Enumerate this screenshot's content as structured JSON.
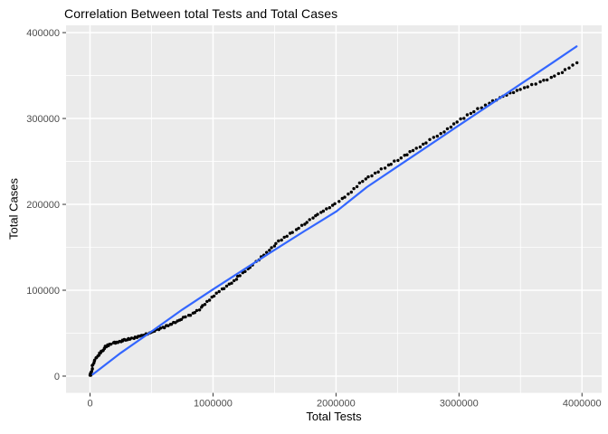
{
  "chart_data": {
    "type": "scatter",
    "title": "Correlation Between total Tests and Total Cases",
    "xlabel": "Total Tests",
    "ylabel": "Total Cases",
    "x_ticks": [
      0,
      1000000,
      2000000,
      3000000,
      4000000
    ],
    "x_tick_labels": [
      "0",
      "1000000",
      "2000000",
      "3000000",
      "4000000"
    ],
    "y_ticks": [
      0,
      100000,
      200000,
      300000,
      400000
    ],
    "y_tick_labels": [
      "0",
      "100000",
      "200000",
      "300000",
      "400000"
    ],
    "xlim": [
      -195000,
      4160000
    ],
    "ylim": [
      -19500,
      408500
    ],
    "grid": {
      "major": true,
      "minor": true,
      "major_color": "#ffffff",
      "minor_color": "#ffffff"
    },
    "panel_bg": "#ebebeb",
    "tick_color": "#333333",
    "tick_label_color": "#4d4d4d",
    "series": [
      {
        "name": "observations",
        "type": "points",
        "color": "#000000",
        "point_radius_px": 1.7,
        "rendered_point_count": 205,
        "x_density_exponent": 1.6,
        "x_max": 3960000,
        "trend_control_points": [
          [
            0,
            1000
          ],
          [
            25000,
            13000
          ],
          [
            50000,
            21000
          ],
          [
            80000,
            27500
          ],
          [
            120000,
            33000
          ],
          [
            170000,
            37500
          ],
          [
            230000,
            40000
          ],
          [
            300000,
            42500
          ],
          [
            370000,
            45000
          ],
          [
            440000,
            48000
          ],
          [
            510000,
            51500
          ],
          [
            580000,
            55500
          ],
          [
            650000,
            60000
          ],
          [
            720000,
            64500
          ],
          [
            790000,
            69500
          ],
          [
            850000,
            74500
          ],
          [
            900000,
            79000
          ],
          [
            950000,
            85000
          ],
          [
            1000000,
            92000
          ],
          [
            1050000,
            98500
          ],
          [
            1130000,
            107000
          ],
          [
            1240000,
            119500
          ],
          [
            1300000,
            126500
          ],
          [
            1355000,
            133500
          ],
          [
            1478000,
            150000
          ],
          [
            1600000,
            163000
          ],
          [
            1700000,
            173500
          ],
          [
            1800000,
            183500
          ],
          [
            1900000,
            192500
          ],
          [
            2000000,
            201000
          ],
          [
            2100000,
            212500
          ],
          [
            2213000,
            226500
          ],
          [
            2300000,
            234000
          ],
          [
            2390000,
            242500
          ],
          [
            2500000,
            252000
          ],
          [
            2640000,
            263500
          ],
          [
            2780000,
            276000
          ],
          [
            2890000,
            286500
          ],
          [
            3000000,
            297500
          ],
          [
            3140000,
            309500
          ],
          [
            3280000,
            321000
          ],
          [
            3390000,
            328000
          ],
          [
            3500000,
            334000
          ],
          [
            3650000,
            341500
          ],
          [
            3760000,
            348500
          ],
          [
            3850000,
            355000
          ],
          [
            3920000,
            361000
          ],
          [
            3960000,
            365500
          ]
        ]
      },
      {
        "name": "smooth-fit-line",
        "type": "line",
        "color": "#3366ff",
        "stroke_width_px": 2.2,
        "points": [
          [
            22000,
            2000
          ],
          [
            250000,
            27000
          ],
          [
            500000,
            52000
          ],
          [
            750000,
            77500
          ],
          [
            1000000,
            101000
          ],
          [
            1250000,
            124000
          ],
          [
            1500000,
            147000
          ],
          [
            1750000,
            169500
          ],
          [
            2000000,
            191500
          ],
          [
            2250000,
            220000
          ],
          [
            2500000,
            244000
          ],
          [
            2750000,
            268000
          ],
          [
            3000000,
            292000
          ],
          [
            3250000,
            316000
          ],
          [
            3500000,
            340000
          ],
          [
            3750000,
            364000
          ],
          [
            3956000,
            384000
          ]
        ]
      }
    ]
  }
}
